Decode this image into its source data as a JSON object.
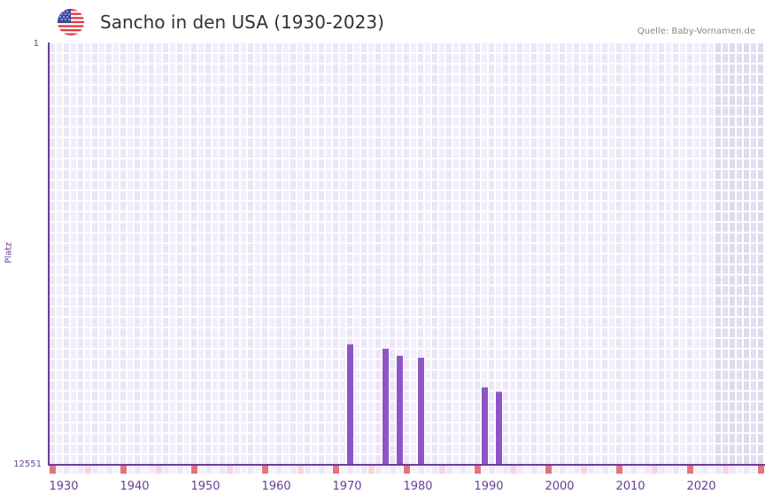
{
  "header": {
    "title": "Sancho in den USA (1930-2023)",
    "flag_icon": "us-flag-icon",
    "source": "Quelle: Baby-Vornamen.de"
  },
  "colors": {
    "bar": "#8e55c7",
    "axis": "#6a3d9a",
    "cell_a": "#f2eefc",
    "cell_b": "#ebe6f8",
    "future_cell": "#e3dff0",
    "marker_decade": "#e5727e",
    "marker_half": "#f4d6de"
  },
  "chart_data": {
    "type": "bar",
    "title": "Sancho in den USA (1930-2023)",
    "xlabel": "",
    "ylabel": "Platz",
    "y_axis_inverted": true,
    "ylim": [
      1,
      12551
    ],
    "y_ticks": [
      "1",
      "12551"
    ],
    "x_range": [
      1930,
      2030
    ],
    "x_ticks": [
      "1930",
      "1940",
      "1950",
      "1960",
      "1970",
      "1980",
      "1990",
      "2000",
      "2010",
      "2020"
    ],
    "data_end_year": 2023,
    "grid": true,
    "series": [
      {
        "name": "Platz",
        "points": [
          {
            "year": 1972,
            "rank": 8970
          },
          {
            "year": 1977,
            "rank": 9100
          },
          {
            "year": 1979,
            "rank": 9310
          },
          {
            "year": 1982,
            "rank": 9370
          },
          {
            "year": 1991,
            "rank": 10250
          },
          {
            "year": 1993,
            "rank": 10380
          }
        ]
      }
    ]
  },
  "axes": {
    "y_top": "1",
    "y_bottom": "12551",
    "y_title": "Platz",
    "x_labels": [
      "1930",
      "1940",
      "1950",
      "1960",
      "1970",
      "1980",
      "1990",
      "2000",
      "2010",
      "2020"
    ]
  }
}
